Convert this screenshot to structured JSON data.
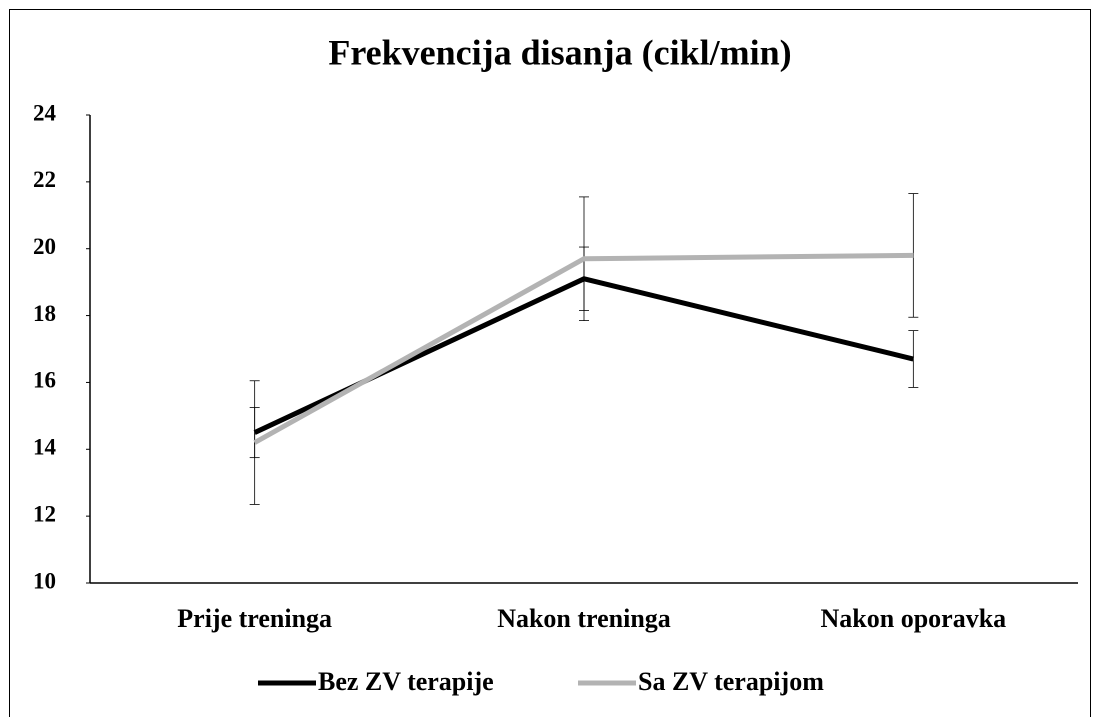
{
  "chart_data": {
    "type": "line",
    "title": "Frekvencija disanja (cikl/min)",
    "categories": [
      "Prije treninga",
      "Nakon treninga",
      "Nakon oporavka"
    ],
    "series": [
      {
        "name": "Bez ZV terapije",
        "color": "#000000",
        "values": [
          14.5,
          19.1,
          16.7
        ],
        "errors": [
          0.75,
          0.95,
          0.85
        ]
      },
      {
        "name": "Sa ZV terapijom",
        "color": "#b3b3b3",
        "values": [
          14.2,
          19.7,
          19.8
        ],
        "errors": [
          1.85,
          1.85,
          1.85
        ]
      }
    ],
    "ylim": [
      10,
      24
    ],
    "yticks": [
      10,
      12,
      14,
      16,
      18,
      20,
      22,
      24
    ],
    "grid": false,
    "legend": "bottom"
  }
}
